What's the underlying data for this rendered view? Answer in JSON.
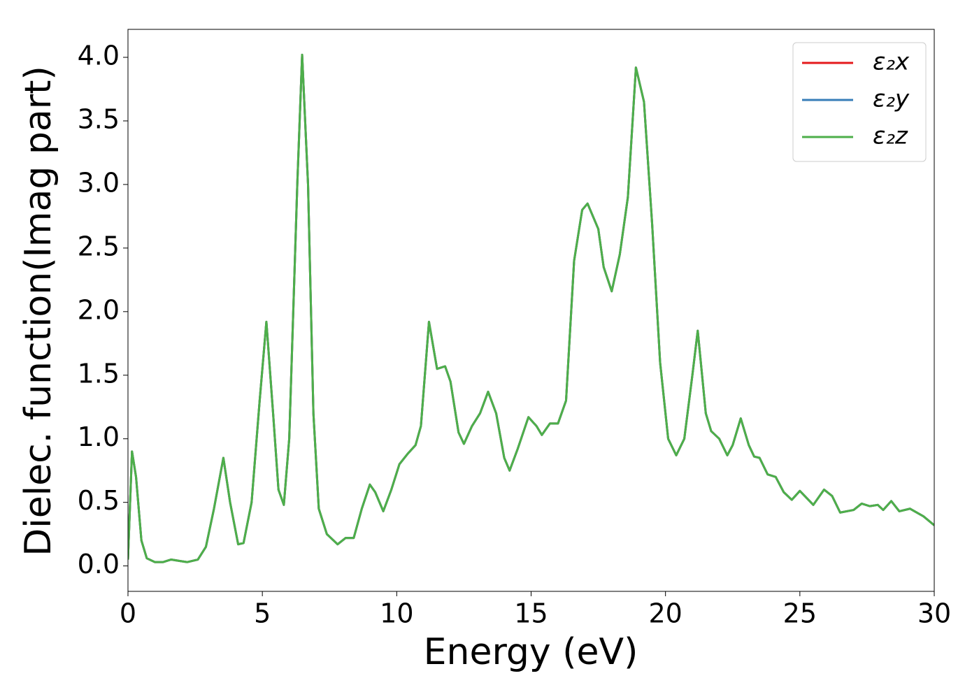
{
  "chart_data": {
    "type": "line",
    "xlabel": "Energy (eV)",
    "ylabel": "Dielec. function(Imag part)",
    "x": [
      0,
      0.15,
      0.3,
      0.5,
      0.7,
      1.0,
      1.3,
      1.6,
      1.9,
      2.2,
      2.6,
      2.9,
      3.2,
      3.55,
      3.8,
      4.1,
      4.3,
      4.6,
      4.9,
      5.15,
      5.4,
      5.6,
      5.8,
      6.0,
      6.3,
      6.48,
      6.7,
      6.9,
      7.1,
      7.4,
      7.8,
      8.1,
      8.4,
      8.7,
      9.0,
      9.2,
      9.5,
      9.8,
      10.1,
      10.4,
      10.7,
      10.9,
      11.2,
      11.5,
      11.8,
      12.0,
      12.3,
      12.5,
      12.8,
      13.1,
      13.4,
      13.7,
      14.0,
      14.2,
      14.5,
      14.9,
      15.2,
      15.4,
      15.7,
      16.0,
      16.3,
      16.6,
      16.9,
      17.1,
      17.5,
      17.7,
      18.0,
      18.3,
      18.6,
      18.9,
      19.2,
      19.5,
      19.8,
      20.1,
      20.4,
      20.7,
      21.0,
      21.2,
      21.5,
      21.7,
      22.0,
      22.3,
      22.5,
      22.8,
      23.1,
      23.3,
      23.5,
      23.8,
      24.1,
      24.4,
      24.7,
      25.0,
      25.5,
      25.9,
      26.2,
      26.5,
      27.0,
      27.3,
      27.6,
      27.9,
      28.1,
      28.4,
      28.7,
      29.1,
      29.6,
      30.0
    ],
    "series": [
      {
        "name": "ε₂x",
        "color": "#e41a1c",
        "values": [
          0.05,
          0.9,
          0.7,
          0.2,
          0.06,
          0.03,
          0.03,
          0.05,
          0.04,
          0.03,
          0.05,
          0.15,
          0.45,
          0.85,
          0.5,
          0.17,
          0.18,
          0.5,
          1.3,
          1.92,
          1.2,
          0.6,
          0.48,
          1.0,
          3.0,
          4.02,
          3.0,
          1.2,
          0.45,
          0.25,
          0.17,
          0.22,
          0.22,
          0.45,
          0.64,
          0.58,
          0.43,
          0.6,
          0.8,
          0.88,
          0.95,
          1.1,
          1.92,
          1.55,
          1.57,
          1.45,
          1.05,
          0.96,
          1.1,
          1.2,
          1.37,
          1.2,
          0.85,
          0.75,
          0.92,
          1.17,
          1.1,
          1.03,
          1.12,
          1.12,
          1.3,
          2.4,
          2.8,
          2.85,
          2.65,
          2.35,
          2.16,
          2.45,
          2.9,
          3.92,
          3.65,
          2.7,
          1.6,
          1.0,
          0.87,
          1.0,
          1.5,
          1.85,
          1.2,
          1.06,
          1.0,
          0.87,
          0.95,
          1.16,
          0.95,
          0.86,
          0.85,
          0.72,
          0.7,
          0.58,
          0.52,
          0.59,
          0.48,
          0.6,
          0.55,
          0.42,
          0.44,
          0.49,
          0.47,
          0.48,
          0.44,
          0.51,
          0.43,
          0.45,
          0.39,
          0.32
        ]
      },
      {
        "name": "ε₂y",
        "color": "#377eb8",
        "values": [
          0.05,
          0.9,
          0.7,
          0.2,
          0.06,
          0.03,
          0.03,
          0.05,
          0.04,
          0.03,
          0.05,
          0.15,
          0.45,
          0.85,
          0.5,
          0.17,
          0.18,
          0.5,
          1.3,
          1.92,
          1.2,
          0.6,
          0.48,
          1.0,
          3.0,
          4.02,
          3.0,
          1.2,
          0.45,
          0.25,
          0.17,
          0.22,
          0.22,
          0.45,
          0.64,
          0.58,
          0.43,
          0.6,
          0.8,
          0.88,
          0.95,
          1.1,
          1.92,
          1.55,
          1.57,
          1.45,
          1.05,
          0.96,
          1.1,
          1.2,
          1.37,
          1.2,
          0.85,
          0.75,
          0.92,
          1.17,
          1.1,
          1.03,
          1.12,
          1.12,
          1.3,
          2.4,
          2.8,
          2.85,
          2.65,
          2.35,
          2.16,
          2.45,
          2.9,
          3.92,
          3.65,
          2.7,
          1.6,
          1.0,
          0.87,
          1.0,
          1.5,
          1.85,
          1.2,
          1.06,
          1.0,
          0.87,
          0.95,
          1.16,
          0.95,
          0.86,
          0.85,
          0.72,
          0.7,
          0.58,
          0.52,
          0.59,
          0.48,
          0.6,
          0.55,
          0.42,
          0.44,
          0.49,
          0.47,
          0.48,
          0.44,
          0.51,
          0.43,
          0.45,
          0.39,
          0.32
        ]
      },
      {
        "name": "ε₂z",
        "color": "#4daf4a",
        "values": [
          0.05,
          0.9,
          0.7,
          0.2,
          0.06,
          0.03,
          0.03,
          0.05,
          0.04,
          0.03,
          0.05,
          0.15,
          0.45,
          0.85,
          0.5,
          0.17,
          0.18,
          0.5,
          1.3,
          1.92,
          1.2,
          0.6,
          0.48,
          1.0,
          3.0,
          4.02,
          3.0,
          1.2,
          0.45,
          0.25,
          0.17,
          0.22,
          0.22,
          0.45,
          0.64,
          0.58,
          0.43,
          0.6,
          0.8,
          0.88,
          0.95,
          1.1,
          1.92,
          1.55,
          1.57,
          1.45,
          1.05,
          0.96,
          1.1,
          1.2,
          1.37,
          1.2,
          0.85,
          0.75,
          0.92,
          1.17,
          1.1,
          1.03,
          1.12,
          1.12,
          1.3,
          2.4,
          2.8,
          2.85,
          2.65,
          2.35,
          2.16,
          2.45,
          2.9,
          3.92,
          3.65,
          2.7,
          1.6,
          1.0,
          0.87,
          1.0,
          1.5,
          1.85,
          1.2,
          1.06,
          1.0,
          0.87,
          0.95,
          1.16,
          0.95,
          0.86,
          0.85,
          0.72,
          0.7,
          0.58,
          0.52,
          0.59,
          0.48,
          0.6,
          0.55,
          0.42,
          0.44,
          0.49,
          0.47,
          0.48,
          0.44,
          0.51,
          0.43,
          0.45,
          0.39,
          0.32
        ]
      }
    ],
    "xlim": [
      0,
      30
    ],
    "xticks": [
      0,
      5,
      10,
      15,
      20,
      25,
      30
    ],
    "ylim": [
      -0.2,
      4.22
    ],
    "yticks": [
      {
        "value": 0,
        "label": "0.0"
      },
      {
        "value": 0.5,
        "label": "0.5"
      },
      {
        "value": 1,
        "label": "1.0"
      },
      {
        "value": 1.5,
        "label": "1.5"
      },
      {
        "value": 2,
        "label": "2.0"
      },
      {
        "value": 2.5,
        "label": "2.5"
      },
      {
        "value": 3,
        "label": "3.0"
      },
      {
        "value": 3.5,
        "label": "3.5"
      },
      {
        "value": 4,
        "label": "4.0"
      }
    ],
    "grid": false,
    "legend": "upper right"
  }
}
